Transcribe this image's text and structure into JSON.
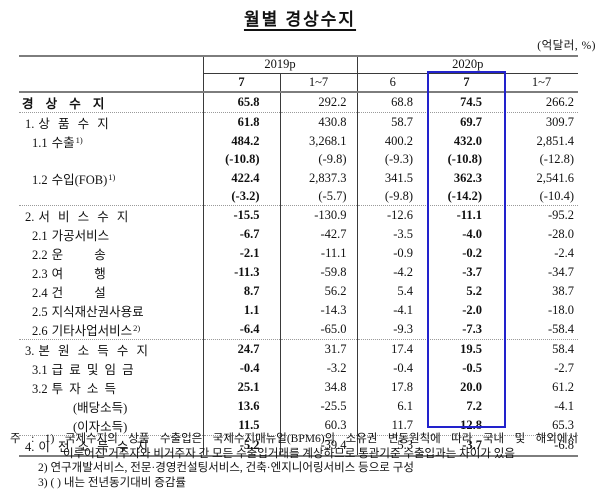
{
  "title": "월별 경상수지",
  "unit_label": "(억달러, %)",
  "colors": {
    "highlight_border": "#2222cc",
    "rule_gray": "#7d7d7d"
  },
  "table": {
    "header": {
      "col_groups": [
        {
          "label": "2019p",
          "span": 2
        },
        {
          "label": "2020p",
          "span": 3
        }
      ],
      "sub_cols": [
        "7",
        "1~7",
        "6",
        "7",
        "1~7"
      ],
      "highlighted_sub_col": "7",
      "highlighted_group": "2020p"
    },
    "rows": [
      {
        "style": "total",
        "label": {
          "num": "",
          "text": "경 상 수 지"
        },
        "values": [
          "65.8",
          "292.2",
          "68.8",
          "74.5",
          "266.2"
        ],
        "section_end": true
      },
      {
        "style": "section",
        "label": {
          "num": "1.",
          "text": "상 품 수 지"
        },
        "values": [
          "61.8",
          "430.8",
          "58.7",
          "69.7",
          "309.7"
        ]
      },
      {
        "style": "sub",
        "label": {
          "num": "1.1",
          "text": "수출",
          "sup": "1)"
        },
        "values": [
          "484.2",
          "3,268.1",
          "400.2",
          "432.0",
          "2,851.4"
        ]
      },
      {
        "style": "growth",
        "label": null,
        "values": [
          "(-10.8)",
          "(-9.8)",
          "(-9.3)",
          "(-10.8)",
          "(-12.8)"
        ]
      },
      {
        "style": "sub",
        "label": {
          "num": "1.2",
          "text": "수입(FOB)",
          "sup": "1)"
        },
        "values": [
          "422.4",
          "2,837.3",
          "341.5",
          "362.3",
          "2,541.6"
        ]
      },
      {
        "style": "growth",
        "label": null,
        "values": [
          "(-3.2)",
          "(-5.7)",
          "(-9.8)",
          "(-14.2)",
          "(-10.4)"
        ],
        "section_end": true
      },
      {
        "style": "section",
        "label": {
          "num": "2.",
          "text": "서 비 스 수 지"
        },
        "values": [
          "-15.5",
          "-130.9",
          "-12.6",
          "-11.1",
          "-95.2"
        ]
      },
      {
        "style": "sub",
        "label": {
          "num": "2.1",
          "text": "가공서비스"
        },
        "values": [
          "-6.7",
          "-42.7",
          "-3.5",
          "-4.0",
          "-28.0"
        ]
      },
      {
        "style": "sub",
        "label": {
          "num": "2.2",
          "text": "운 송",
          "gap": true
        },
        "values": [
          "-2.1",
          "-11.1",
          "-0.9",
          "-0.2",
          "-2.4"
        ]
      },
      {
        "style": "sub",
        "label": {
          "num": "2.3",
          "text": "여 행",
          "gap": true
        },
        "values": [
          "-11.3",
          "-59.8",
          "-4.2",
          "-3.7",
          "-34.7"
        ]
      },
      {
        "style": "sub",
        "label": {
          "num": "2.4",
          "text": "건 설",
          "gap": true
        },
        "values": [
          "8.7",
          "56.2",
          "5.4",
          "5.2",
          "38.7"
        ]
      },
      {
        "style": "sub",
        "label": {
          "num": "2.5",
          "text": "지식재산권사용료"
        },
        "values": [
          "1.1",
          "-14.3",
          "-4.1",
          "-2.0",
          "-18.0"
        ]
      },
      {
        "style": "sub",
        "label": {
          "num": "2.6",
          "text": "기타사업서비스",
          "sup": "2)"
        },
        "values": [
          "-6.4",
          "-65.0",
          "-9.3",
          "-7.3",
          "-58.4"
        ],
        "section_end": true
      },
      {
        "style": "section",
        "label": {
          "num": "3.",
          "text": "본 원 소 득 수 지"
        },
        "values": [
          "24.7",
          "31.7",
          "17.4",
          "19.5",
          "58.4"
        ]
      },
      {
        "style": "sub",
        "label": {
          "num": "3.1",
          "text": "급 료 및 임 금"
        },
        "values": [
          "-0.4",
          "-3.2",
          "-0.4",
          "-0.5",
          "-2.7"
        ]
      },
      {
        "style": "sub",
        "label": {
          "num": "3.2",
          "text": "투 자 소 득"
        },
        "values": [
          "25.1",
          "34.8",
          "17.8",
          "20.0",
          "61.2"
        ]
      },
      {
        "style": "paren",
        "label": {
          "num": "",
          "text": "(배당소득)"
        },
        "values": [
          "13.6",
          "-25.5",
          "6.1",
          "7.2",
          "-4.1"
        ]
      },
      {
        "style": "paren",
        "label": {
          "num": "",
          "text": "(이자소득)"
        },
        "values": [
          "11.5",
          "60.3",
          "11.7",
          "12.8",
          "65.3"
        ],
        "section_end": true
      },
      {
        "style": "section",
        "label": {
          "num": "4.",
          "text": "이 전 소 득 수 지"
        },
        "values": [
          "-5.2",
          "-39.4",
          "5.3",
          "-3.7",
          "-6.8"
        ]
      }
    ]
  },
  "footnotes": [
    {
      "text": "주 : 1) 국제수지의 상품 수출입은 국제수지매뉴얼(BPM6)의 소유권 변동원칙에 따라 국내 및 해외에서",
      "justify": true,
      "indent": 0
    },
    {
      "text": "이루어진 거주자와 비거주자 간 모든 수출입거래를 계상하므로 통관기준 수출입과는 차이가 있음",
      "justify": false,
      "indent": 53
    },
    {
      "text": "2) 연구개발서비스, 전문·경영컨설팅서비스, 건축·엔지니어링서비스 등으로 구성",
      "justify": false,
      "indent": 28
    },
    {
      "text": "3) (  ) 내는 전년동기대비 증감률",
      "justify": false,
      "indent": 28
    }
  ]
}
